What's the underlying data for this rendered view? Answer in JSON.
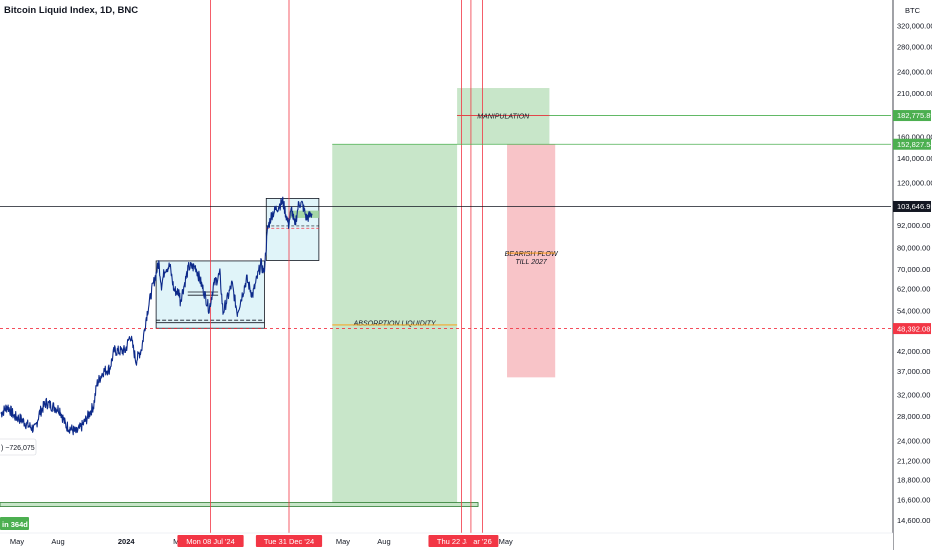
{
  "header": {
    "title": "Bitcoin Liquid Index, 1D, BNC"
  },
  "chart_data": {
    "type": "line",
    "title": "Bitcoin Liquid Index, 1D, BNC",
    "y_axis_unit": "BTC",
    "y_scale": "log",
    "ylim": [
      13500,
      340000
    ],
    "y_ticks": [
      14600,
      16600,
      18800,
      21200,
      24000,
      28000,
      32000,
      37000,
      42000,
      48000,
      54000,
      62000,
      70000,
      80000,
      92000,
      120000,
      140000,
      160000,
      210000,
      240000,
      280000,
      320000
    ],
    "y_tick_labels": [
      "14,600.00",
      "16,600.00",
      "18,800.00",
      "21,200.00",
      "24,000.00",
      "28,000.00",
      "32,000.00",
      "37,000.00",
      "42,000.00",
      "48,000.00",
      "54,000.00",
      "62,000.00",
      "70,000.00",
      "80,000.00",
      "92,000.00",
      "120,000.00",
      "140,000.00",
      "160,000.00",
      "210,000.00",
      "240,000.00",
      "280,000.00",
      "320,000.00"
    ],
    "x_ticks": [
      {
        "label": "May",
        "date": "2023-05-01"
      },
      {
        "label": "Aug",
        "date": "2023-08-01"
      },
      {
        "label": "2024",
        "date": "2024-01-01"
      },
      {
        "label": "May",
        "date": "2024-05-01"
      },
      {
        "label": "May",
        "date": "2025-05-01"
      },
      {
        "label": "Aug",
        "date": "2025-08-01"
      },
      {
        "label": "May",
        "date": "2026-05-01"
      }
    ],
    "price_series": {
      "name": "BTC",
      "points": [
        [
          "2023-03-26",
          28500
        ],
        [
          "2023-04-10",
          29800
        ],
        [
          "2023-04-25",
          28000
        ],
        [
          "2023-05-10",
          27500
        ],
        [
          "2023-05-25",
          26500
        ],
        [
          "2023-06-10",
          25800
        ],
        [
          "2023-06-20",
          28500
        ],
        [
          "2023-07-05",
          30500
        ],
        [
          "2023-07-20",
          29800
        ],
        [
          "2023-08-05",
          29200
        ],
        [
          "2023-08-18",
          26500
        ],
        [
          "2023-09-01",
          25800
        ],
        [
          "2023-09-11",
          25300
        ],
        [
          "2023-09-25",
          26500
        ],
        [
          "2023-10-05",
          27700
        ],
        [
          "2023-10-20",
          30000
        ],
        [
          "2023-10-27",
          34200
        ],
        [
          "2023-11-10",
          37000
        ],
        [
          "2023-11-25",
          37700
        ],
        [
          "2023-12-05",
          42200
        ],
        [
          "2023-12-15",
          42000
        ],
        [
          "2023-12-30",
          42200
        ],
        [
          "2024-01-10",
          46500
        ],
        [
          "2024-01-23",
          39500
        ],
        [
          "2024-02-05",
          43000
        ],
        [
          "2024-02-15",
          52000
        ],
        [
          "2024-02-28",
          62000
        ],
        [
          "2024-03-05",
          66000
        ],
        [
          "2024-03-14",
          73000
        ],
        [
          "2024-03-20",
          63500
        ],
        [
          "2024-03-28",
          70500
        ],
        [
          "2024-04-08",
          71500
        ],
        [
          "2024-04-17",
          61500
        ],
        [
          "2024-04-30",
          60500
        ],
        [
          "2024-05-01",
          57500
        ],
        [
          "2024-05-20",
          71000
        ],
        [
          "2024-06-05",
          71000
        ],
        [
          "2024-06-24",
          60500
        ],
        [
          "2024-07-05",
          54500
        ],
        [
          "2024-07-15",
          63500
        ],
        [
          "2024-07-29",
          68000
        ],
        [
          "2024-08-05",
          53500
        ],
        [
          "2024-08-25",
          64000
        ],
        [
          "2024-09-06",
          53500
        ],
        [
          "2024-09-27",
          66000
        ],
        [
          "2024-10-10",
          59500
        ],
        [
          "2024-10-29",
          72500
        ],
        [
          "2024-11-05",
          68500
        ],
        [
          "2024-11-13",
          90000
        ],
        [
          "2024-11-22",
          98500
        ],
        [
          "2024-12-05",
          103000
        ],
        [
          "2024-12-17",
          107000
        ],
        [
          "2024-12-30",
          92500
        ],
        [
          "2025-01-06",
          102000
        ],
        [
          "2025-01-13",
          91500
        ],
        [
          "2025-01-22",
          106000
        ],
        [
          "2025-01-30",
          105000
        ],
        [
          "2025-02-08",
          96500
        ],
        [
          "2025-02-14",
          97500
        ],
        [
          "2025-02-21",
          99000
        ]
      ]
    },
    "marked_dates": [
      {
        "label": "Mon 08 Jul '24",
        "date": "2024-07-08"
      },
      {
        "label": "Tue 31 Dec '24",
        "date": "2024-12-31"
      },
      {
        "label": "Thu 22 Jan '26",
        "date": "2026-01-22"
      },
      {
        "label": "",
        "date": "2026-02-12"
      },
      {
        "label": "ar '26",
        "date": "2026-03-10"
      }
    ],
    "horizontal_levels": [
      {
        "label": "182,775.89",
        "value": 182775.89,
        "color": "#4caf50"
      },
      {
        "label": "152,827.54",
        "value": 152827.54,
        "color": "#4caf50"
      },
      {
        "label": "103,646.95",
        "value": 103646.95,
        "color": "#131722"
      },
      {
        "label": "48,392.08",
        "value": 48392.08,
        "color": "#f23645"
      }
    ],
    "zones": [
      {
        "name": "accumulation-range-2024",
        "x0": "2024-03-08",
        "x1": "2024-11-06",
        "y0": 48500,
        "y1": 73800
      },
      {
        "name": "breakout-range",
        "x0": "2024-11-10",
        "x1": "2025-03-08",
        "y0": 74000,
        "y1": 109000
      },
      {
        "name": "absorption-zone",
        "label": "ABSORPTION LIQUIDITY",
        "x0": "2025-04-07",
        "x1": "2026-01-12",
        "y0": 16100,
        "y1": 152827.54
      },
      {
        "name": "manipulation-zone",
        "label": "MANIPULATION",
        "x0": "2026-01-12",
        "x1": "2026-08-07",
        "y0": 152827.54,
        "y1": 217000
      },
      {
        "name": "bearish-zone",
        "label": "BEARISH FLOW TILL 2027",
        "x0": "2026-05-04",
        "x1": "2026-08-20",
        "y0": 35700,
        "y1": 152827.54
      },
      {
        "name": "bottom-range",
        "x0": "2022-12-01",
        "x1": "2026-02-28",
        "y0": 15950,
        "y1": 16350
      }
    ],
    "annotations": [
      {
        "text": ") −726,075"
      },
      {
        "text": "in 364d"
      }
    ]
  }
}
